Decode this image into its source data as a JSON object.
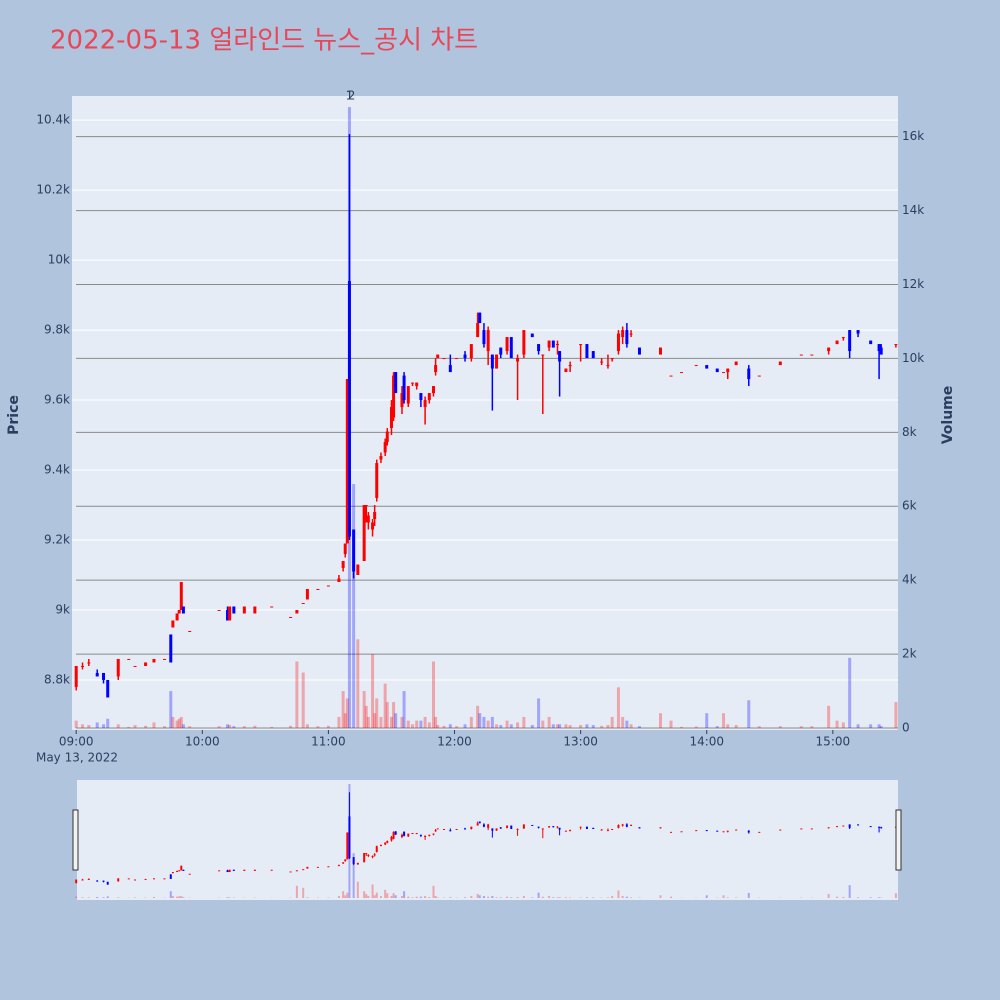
{
  "chart_data": {
    "type": "candlestick",
    "title": "2022-05-13 얼라인드 뉴스_공시 차트",
    "ylabel": "Price",
    "y2label": "Volume",
    "x_date_label": "May 13, 2022",
    "increasing_color": "#ff0000",
    "decreasing_color": "#0000ff",
    "annotations": [
      {
        "x": "11:10",
        "text": "1"
      },
      {
        "x": "11:11",
        "text": "2"
      }
    ],
    "xlim": [
      "08:58",
      "15:31"
    ],
    "xticks": [
      "09:00",
      "10:00",
      "11:00",
      "12:00",
      "13:00",
      "14:00",
      "15:00"
    ],
    "ylim": [
      8657,
      10469
    ],
    "yticks": [
      {
        "value": 8800,
        "label": "8.8k"
      },
      {
        "value": 9000,
        "label": "9k"
      },
      {
        "value": 9200,
        "label": "9.2k"
      },
      {
        "value": 9400,
        "label": "9.4k"
      },
      {
        "value": 9600,
        "label": "9.6k"
      },
      {
        "value": 9800,
        "label": "9.8k"
      },
      {
        "value": 10000,
        "label": "10k"
      },
      {
        "value": 10200,
        "label": "10.2k"
      },
      {
        "value": 10400,
        "label": "10.4k"
      }
    ],
    "y2lim": [
      0,
      17100
    ],
    "y2ticks": [
      0,
      {
        "value": 2000,
        "label": "2k"
      },
      {
        "value": 4000,
        "label": "4k"
      },
      {
        "value": 6000,
        "label": "6k"
      },
      {
        "value": 8000,
        "label": "8k"
      },
      {
        "value": 10000,
        "label": "10k"
      },
      {
        "value": 12000,
        "label": "12k"
      },
      {
        "value": 14000,
        "label": "14k"
      },
      {
        "value": 16000,
        "label": "16k"
      }
    ],
    "x": [
      "09:00",
      "09:03",
      "09:06",
      "09:10",
      "09:13",
      "09:15",
      "09:20",
      "09:25",
      "09:28",
      "09:33",
      "09:37",
      "09:42",
      "09:45",
      "09:46",
      "09:48",
      "09:49",
      "09:50",
      "09:51",
      "09:54",
      "10:08",
      "10:12",
      "10:13",
      "10:15",
      "10:20",
      "10:25",
      "10:33",
      "10:42",
      "10:45",
      "10:48",
      "10:50",
      "10:55",
      "11:00",
      "11:05",
      "11:07",
      "11:08",
      "11:09",
      "11:10",
      "11:12",
      "11:14",
      "11:17",
      "11:18",
      "11:19",
      "11:21",
      "11:22",
      "11:23",
      "11:25",
      "11:27",
      "11:28",
      "11:30",
      "11:31",
      "11:32",
      "11:35",
      "11:36",
      "11:38",
      "11:40",
      "11:42",
      "11:44",
      "11:46",
      "11:48",
      "11:50",
      "11:51",
      "11:52",
      "11:55",
      "11:58",
      "12:01",
      "12:05",
      "12:08",
      "12:11",
      "12:12",
      "12:14",
      "12:16",
      "12:18",
      "12:20",
      "12:22",
      "12:25",
      "12:27",
      "12:30",
      "12:33",
      "12:37",
      "12:40",
      "12:42",
      "12:45",
      "12:47",
      "12:49",
      "12:50",
      "12:53",
      "12:55",
      "13:00",
      "13:03",
      "13:06",
      "13:10",
      "13:13",
      "13:15",
      "13:18",
      "13:20",
      "13:22",
      "13:24",
      "13:28",
      "13:38",
      "13:43",
      "13:48",
      "13:55",
      "14:00",
      "14:05",
      "14:08",
      "14:10",
      "14:14",
      "14:20",
      "14:25",
      "14:35",
      "14:45",
      "14:50",
      "14:58",
      "15:02",
      "15:05",
      "15:08",
      "15:12",
      "15:18",
      "15:22",
      "15:23",
      "15:30"
    ],
    "open": [
      8780,
      8840,
      8850,
      8820,
      8820,
      8800,
      8810,
      8860,
      8840,
      8840,
      8850,
      8860,
      8930,
      8950,
      8970,
      8990,
      9000,
      9010,
      8940,
      9000,
      9000,
      8970,
      9010,
      8990,
      8990,
      9010,
      8980,
      8990,
      9020,
      9030,
      9060,
      9070,
      9080,
      9120,
      9160,
      9190,
      9940,
      9230,
      9100,
      9140,
      9300,
      9250,
      9230,
      9260,
      9320,
      9430,
      9450,
      9480,
      9520,
      9550,
      9680,
      9580,
      9670,
      9590,
      9650,
      9640,
      9620,
      9580,
      9600,
      9620,
      9680,
      9720,
      9720,
      9700,
      9720,
      9730,
      9720,
      9780,
      9850,
      9800,
      9740,
      9730,
      9690,
      9750,
      9740,
      9780,
      9710,
      9730,
      9790,
      9760,
      9730,
      9750,
      9770,
      9760,
      9740,
      9680,
      9700,
      9760,
      9760,
      9740,
      9710,
      9700,
      9720,
      9740,
      9780,
      9800,
      9790,
      9750,
      9730,
      9670,
      9680,
      9700,
      9700,
      9690,
      9680,
      9680,
      9700,
      9690,
      9670,
      9700,
      9730,
      9730,
      9740,
      9760,
      9780,
      9800,
      9800,
      9770,
      9760,
      9750,
      9760
    ],
    "high": [
      8840,
      8850,
      8860,
      8830,
      8820,
      8800,
      8860,
      8860,
      8840,
      8850,
      8860,
      8860,
      8930,
      8970,
      8990,
      9000,
      9080,
      9010,
      8940,
      9000,
      9010,
      9010,
      9010,
      9010,
      9010,
      9010,
      8980,
      9000,
      9020,
      9060,
      9060,
      9070,
      9100,
      9140,
      9190,
      9660,
      10360,
      9230,
      9130,
      9300,
      9300,
      9280,
      9260,
      9300,
      9430,
      9450,
      9490,
      9520,
      9600,
      9680,
      9680,
      9640,
      9680,
      9640,
      9650,
      9650,
      9620,
      9610,
      9620,
      9640,
      9720,
      9730,
      9720,
      9730,
      9720,
      9740,
      9760,
      9850,
      9850,
      9820,
      9810,
      9730,
      9730,
      9750,
      9780,
      9780,
      9730,
      9800,
      9790,
      9760,
      9730,
      9770,
      9770,
      9770,
      9740,
      9690,
      9710,
      9760,
      9760,
      9740,
      9720,
      9730,
      9720,
      9800,
      9810,
      9820,
      9800,
      9750,
      9750,
      9670,
      9680,
      9700,
      9700,
      9690,
      9680,
      9690,
      9710,
      9700,
      9670,
      9710,
      9730,
      9730,
      9750,
      9770,
      9780,
      9800,
      9800,
      9770,
      9760,
      9760,
      9760
    ],
    "low": [
      8770,
      8830,
      8840,
      8810,
      8790,
      8750,
      8800,
      8860,
      8840,
      8840,
      8850,
      8860,
      8850,
      8950,
      8970,
      8990,
      9000,
      8990,
      8940,
      9000,
      8970,
      8970,
      8990,
      8990,
      8990,
      9010,
      8980,
      8990,
      9020,
      9030,
      9060,
      9070,
      9080,
      9110,
      9150,
      9190,
      9200,
      9090,
      9100,
      9140,
      9250,
      9230,
      9210,
      9240,
      9310,
      9420,
      9440,
      9470,
      9500,
      9540,
      9620,
      9560,
      9590,
      9580,
      9640,
      9630,
      9580,
      9530,
      9590,
      9610,
      9670,
      9720,
      9720,
      9680,
      9720,
      9710,
      9710,
      9780,
      9820,
      9750,
      9700,
      9570,
      9690,
      9720,
      9730,
      9720,
      9600,
      9720,
      9780,
      9730,
      9560,
      9740,
      9750,
      9730,
      9610,
      9680,
      9680,
      9710,
      9720,
      9720,
      9700,
      9690,
      9710,
      9730,
      9760,
      9750,
      9780,
      9730,
      9730,
      9670,
      9680,
      9700,
      9690,
      9680,
      9680,
      9660,
      9700,
      9640,
      9670,
      9700,
      9730,
      9730,
      9730,
      9760,
      9770,
      9720,
      9780,
      9760,
      9660,
      9730,
      9750
    ],
    "close": [
      8840,
      8840,
      8850,
      8810,
      8800,
      8750,
      8860,
      8860,
      8840,
      8850,
      8860,
      8860,
      8850,
      8970,
      8990,
      9000,
      9080,
      8990,
      8940,
      9000,
      8970,
      9010,
      8990,
      9010,
      9010,
      9010,
      8980,
      9000,
      9020,
      9060,
      9060,
      9070,
      9090,
      9140,
      9190,
      9660,
      9210,
      9110,
      9130,
      9300,
      9300,
      9270,
      9250,
      9280,
      9420,
      9440,
      9480,
      9510,
      9580,
      9670,
      9620,
      9620,
      9600,
      9640,
      9650,
      9650,
      9600,
      9600,
      9620,
      9640,
      9700,
      9730,
      9720,
      9680,
      9720,
      9720,
      9760,
      9820,
      9820,
      9760,
      9800,
      9690,
      9730,
      9730,
      9780,
      9720,
      9720,
      9800,
      9780,
      9740,
      9730,
      9770,
      9750,
      9760,
      9710,
      9690,
      9700,
      9760,
      9720,
      9720,
      9710,
      9700,
      9720,
      9790,
      9800,
      9760,
      9790,
      9730,
      9750,
      9670,
      9680,
      9700,
      9690,
      9680,
      9680,
      9690,
      9710,
      9660,
      9670,
      9710,
      9730,
      9730,
      9750,
      9770,
      9780,
      9740,
      9790,
      9760,
      9740,
      9730,
      9760
    ],
    "volume": [
      200,
      100,
      80,
      150,
      100,
      250,
      100,
      30,
      80,
      60,
      150,
      50,
      1000,
      300,
      200,
      250,
      300,
      100,
      50,
      50,
      100,
      80,
      50,
      50,
      60,
      30,
      60,
      1800,
      1500,
      100,
      50,
      60,
      300,
      1000,
      400,
      800,
      16800,
      6600,
      2400,
      1000,
      600,
      300,
      2000,
      400,
      800,
      300,
      1200,
      700,
      300,
      700,
      400,
      300,
      1000,
      200,
      100,
      200,
      200,
      300,
      150,
      1800,
      300,
      80,
      60,
      100,
      50,
      100,
      300,
      600,
      400,
      300,
      200,
      300,
      100,
      80,
      200,
      100,
      150,
      300,
      80,
      800,
      200,
      300,
      100,
      100,
      100,
      100,
      80,
      80,
      100,
      80,
      60,
      80,
      300,
      1100,
      300,
      200,
      100,
      50,
      400,
      200,
      30,
      40,
      400,
      50,
      400,
      100,
      80,
      750,
      50,
      50,
      50,
      50,
      600,
      200,
      150,
      1900,
      100,
      100,
      100,
      50,
      700
    ]
  }
}
